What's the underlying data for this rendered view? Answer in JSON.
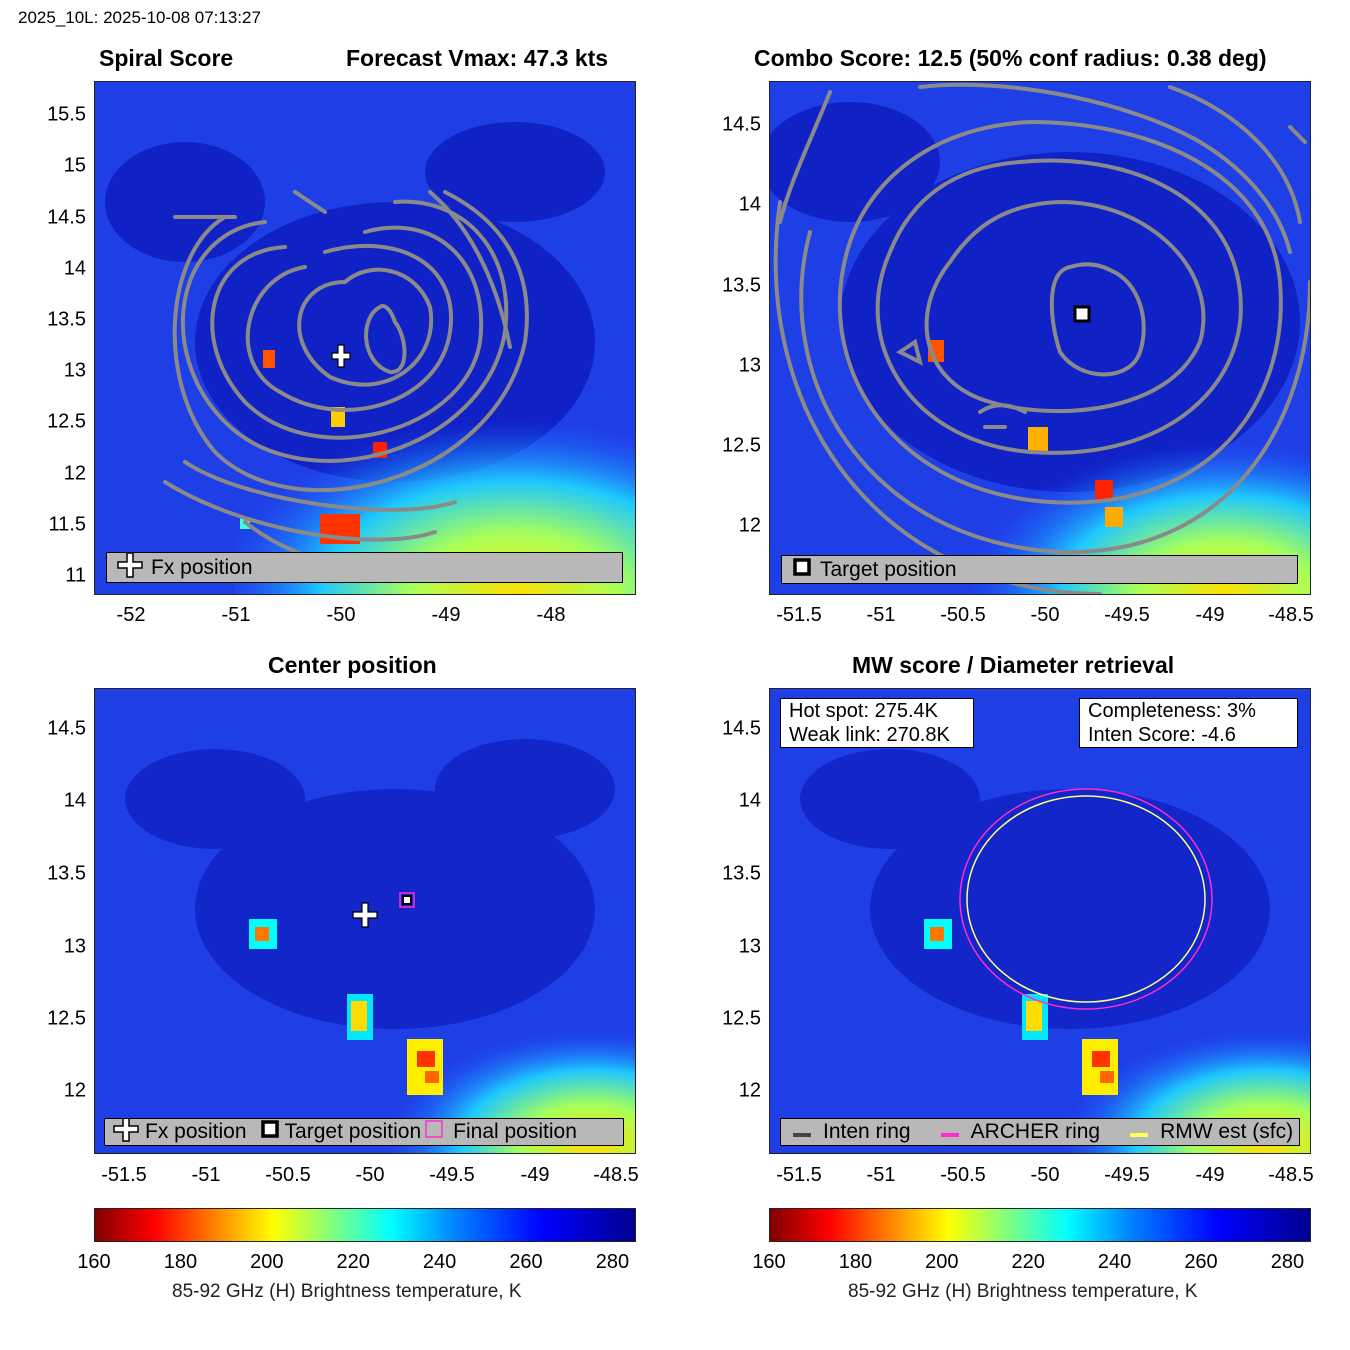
{
  "header": "2025_10L: 2025-10-08 07:13:27",
  "panels": {
    "spiral": {
      "title_left": "Spiral Score",
      "title_right": "Forecast Vmax: 47.3 kts",
      "xticks": [
        "-52",
        "-51",
        "-50",
        "-49",
        "-48"
      ],
      "yticks": [
        "15.5",
        "15",
        "14.5",
        "14",
        "13.5",
        "13",
        "12.5",
        "12",
        "11.5",
        "11"
      ],
      "legend": "Fx position"
    },
    "combo": {
      "title": "Combo Score: 12.5  (50% conf radius: 0.38 deg)",
      "xticks": [
        "-51.5",
        "-51",
        "-50.5",
        "-50",
        "-49.5",
        "-49",
        "-48.5"
      ],
      "yticks": [
        "14.5",
        "14",
        "13.5",
        "13",
        "12.5",
        "12"
      ],
      "legend": "Target position"
    },
    "center": {
      "title": "Center position",
      "xticks": [
        "-51.5",
        "-51",
        "-50.5",
        "-50",
        "-49.5",
        "-49",
        "-48.5"
      ],
      "yticks": [
        "14.5",
        "14",
        "13.5",
        "13",
        "12.5",
        "12"
      ],
      "legend": [
        "Fx position",
        "Target position",
        "Final position"
      ]
    },
    "mw": {
      "title": "MW score / Diameter retrieval",
      "xticks": [
        "-51.5",
        "-51",
        "-50.5",
        "-50",
        "-49.5",
        "-49",
        "-48.5"
      ],
      "yticks": [
        "14.5",
        "14",
        "13.5",
        "13",
        "12.5",
        "12"
      ],
      "box_left": [
        "Hot spot: 275.4K",
        "Weak link: 270.8K"
      ],
      "box_right": [
        "Completeness: 3%",
        "Inten Score: -4.6"
      ],
      "legend": [
        "Inten ring",
        "ARCHER ring",
        "RMW est (sfc)"
      ]
    }
  },
  "colorbar": {
    "ticks": [
      "160",
      "180",
      "200",
      "220",
      "240",
      "260",
      "280"
    ],
    "label": "85-92 GHz (H) Brightness temperature, K"
  },
  "chart_data": [
    {
      "type": "heatmap",
      "title": "Spiral Score — Forecast Vmax: 47.3 kts",
      "xlim": [
        -52.45,
        -47.2
      ],
      "ylim": [
        10.9,
        15.85
      ],
      "markers": [
        {
          "name": "Fx position",
          "x": -50.03,
          "y": 13.18
        }
      ],
      "contours": "spiral score rings around (-49.6, 13.4)",
      "clim": [
        160,
        285
      ]
    },
    {
      "type": "heatmap",
      "title": "Combo Score: 12.5 (50% conf radius: 0.38 deg)",
      "xlim": [
        -51.7,
        -48.4
      ],
      "ylim": [
        11.6,
        14.75
      ],
      "markers": [
        {
          "name": "Target position",
          "x": -49.77,
          "y": 13.33
        }
      ],
      "clim": [
        160,
        285
      ]
    },
    {
      "type": "heatmap",
      "title": "Center position",
      "xlim": [
        -51.7,
        -48.4
      ],
      "ylim": [
        11.6,
        14.75
      ],
      "markers": [
        {
          "name": "Fx position",
          "x": -50.03,
          "y": 13.18
        },
        {
          "name": "Target position",
          "x": -49.77,
          "y": 13.33
        },
        {
          "name": "Final position",
          "x": -49.77,
          "y": 13.33
        }
      ],
      "clim": [
        160,
        285
      ]
    },
    {
      "type": "heatmap",
      "title": "MW score / Diameter retrieval",
      "xlim": [
        -51.7,
        -48.4
      ],
      "ylim": [
        11.6,
        14.75
      ],
      "hot_spot_K": 275.4,
      "weak_link_K": 270.8,
      "completeness_pct": 3,
      "inten_score": -4.6,
      "rings": [
        {
          "name": "ARCHER ring",
          "center": [
            -49.77,
            13.33
          ],
          "radius_deg": 0.8
        },
        {
          "name": "RMW est (sfc)",
          "center": [
            -49.77,
            13.33
          ],
          "radius_deg": 0.75
        }
      ],
      "clim": [
        160,
        285
      ]
    }
  ]
}
